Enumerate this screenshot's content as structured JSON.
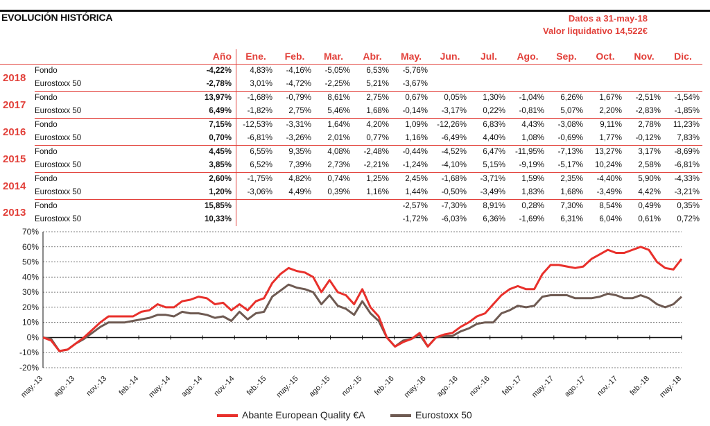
{
  "header": {
    "title": "EVOLUCIÓN HISTÓRICA",
    "date_note": "Datos a 31-may-18",
    "nav_note": "Valor liquidativo 14,522€"
  },
  "table": {
    "ytd_label": "Año",
    "months": [
      "Ene.",
      "Feb.",
      "Mar.",
      "Abr.",
      "May.",
      "Jun.",
      "Jul.",
      "Ago.",
      "Sep.",
      "Oct.",
      "Nov.",
      "Dic."
    ],
    "years": [
      {
        "year": "2018",
        "rows": [
          {
            "name": "Fondo",
            "ytd": "-4,22%",
            "m": [
              "4,83%",
              "-4,16%",
              "-5,05%",
              "6,53%",
              "-5,76%",
              "",
              "",
              "",
              "",
              "",
              "",
              ""
            ]
          },
          {
            "name": "Eurostoxx 50",
            "ytd": "-2,78%",
            "m": [
              "3,01%",
              "-4,72%",
              "-2,25%",
              "5,21%",
              "-3,67%",
              "",
              "",
              "",
              "",
              "",
              "",
              ""
            ]
          }
        ]
      },
      {
        "year": "2017",
        "rows": [
          {
            "name": "Fondo",
            "ytd": "13,97%",
            "m": [
              "-1,68%",
              "-0,79%",
              "8,61%",
              "2,75%",
              "0,67%",
              "0,05%",
              "1,30%",
              "-1,04%",
              "6,26%",
              "1,67%",
              "-2,51%",
              "-1,54%"
            ]
          },
          {
            "name": "Eurostoxx 50",
            "ytd": "6,49%",
            "m": [
              "-1,82%",
              "2,75%",
              "5,46%",
              "1,68%",
              "-0,14%",
              "-3,17%",
              "0,22%",
              "-0,81%",
              "5,07%",
              "2,20%",
              "-2,83%",
              "-1,85%"
            ]
          }
        ]
      },
      {
        "year": "2016",
        "rows": [
          {
            "name": "Fondo",
            "ytd": "7,15%",
            "m": [
              "-12,53%",
              "-3,31%",
              "1,64%",
              "4,20%",
              "1,09%",
              "-12,26%",
              "6,83%",
              "4,43%",
              "-3,08%",
              "9,11%",
              "2,78%",
              "11,23%"
            ]
          },
          {
            "name": "Eurostoxx 50",
            "ytd": "0,70%",
            "m": [
              "-6,81%",
              "-3,26%",
              "2,01%",
              "0,77%",
              "1,16%",
              "-6,49%",
              "4,40%",
              "1,08%",
              "-0,69%",
              "1,77%",
              "-0,12%",
              "7,83%"
            ]
          }
        ]
      },
      {
        "year": "2015",
        "rows": [
          {
            "name": "Fondo",
            "ytd": "4,45%",
            "m": [
              "6,55%",
              "9,35%",
              "4,08%",
              "-2,48%",
              "-0,44%",
              "-4,52%",
              "6,47%",
              "-11,95%",
              "-7,13%",
              "13,27%",
              "3,17%",
              "-8,69%"
            ]
          },
          {
            "name": "Eurostoxx 50",
            "ytd": "3,85%",
            "m": [
              "6,52%",
              "7,39%",
              "2,73%",
              "-2,21%",
              "-1,24%",
              "-4,10%",
              "5,15%",
              "-9,19%",
              "-5,17%",
              "10,24%",
              "2,58%",
              "-6,81%"
            ]
          }
        ]
      },
      {
        "year": "2014",
        "rows": [
          {
            "name": "Fondo",
            "ytd": "2,60%",
            "m": [
              "-1,75%",
              "4,82%",
              "0,74%",
              "1,25%",
              "2,45%",
              "-1,68%",
              "-3,71%",
              "1,59%",
              "2,35%",
              "-4,40%",
              "5,90%",
              "-4,33%"
            ]
          },
          {
            "name": "Eurostoxx 50",
            "ytd": "1,20%",
            "m": [
              "-3,06%",
              "4,49%",
              "0,39%",
              "1,16%",
              "1,44%",
              "-0,50%",
              "-3,49%",
              "1,83%",
              "1,68%",
              "-3,49%",
              "4,42%",
              "-3,21%"
            ]
          }
        ]
      },
      {
        "year": "2013",
        "rows": [
          {
            "name": "Fondo",
            "ytd": "15,85%",
            "m": [
              "",
              "",
              "",
              "",
              "-2,57%",
              "-7,30%",
              "8,91%",
              "0,28%",
              "7,30%",
              "8,54%",
              "0,49%",
              "0,35%"
            ]
          },
          {
            "name": "Eurostoxx 50",
            "ytd": "10,33%",
            "m": [
              "",
              "",
              "",
              "",
              "-1,72%",
              "-6,03%",
              "6,36%",
              "-1,69%",
              "6,31%",
              "6,04%",
              "0,61%",
              "0,72%"
            ]
          }
        ]
      }
    ]
  },
  "chart_data": {
    "type": "line",
    "ylim": [
      -20,
      70
    ],
    "yticks": [
      "70%",
      "60%",
      "50%",
      "40%",
      "30%",
      "20%",
      "10%",
      "0%",
      "-10%",
      "-20%"
    ],
    "yvalues": [
      70,
      60,
      50,
      40,
      30,
      20,
      10,
      0,
      -10,
      -20
    ],
    "xticks": [
      "may.-13",
      "ago.-13",
      "nov.-13",
      "feb.-14",
      "may.-14",
      "ago.-14",
      "nov.-14",
      "feb.-15",
      "may.-15",
      "ago.-15",
      "nov.-15",
      "feb.-16",
      "may.-16",
      "ago.-16",
      "nov.-16",
      "feb.-17",
      "may.-17",
      "ago.-17",
      "nov.-17",
      "feb.-18",
      "may.-18"
    ],
    "grid": true,
    "legend_position": "bottom",
    "series": [
      {
        "name": "Abante European Quality €A",
        "color": "#e8302b",
        "values": [
          0,
          -2,
          -9,
          -8,
          -4,
          0,
          5,
          10,
          14,
          14,
          14,
          14,
          17,
          18,
          22,
          20,
          20,
          24,
          25,
          27,
          26,
          22,
          23,
          18,
          22,
          18,
          24,
          26,
          36,
          42,
          46,
          44,
          43,
          40,
          30,
          38,
          30,
          28,
          22,
          32,
          20,
          14,
          0,
          -6,
          -3,
          -1,
          3,
          -6,
          0,
          2,
          3,
          7,
          10,
          14,
          16,
          22,
          28,
          32,
          34,
          32,
          32,
          42,
          48,
          48,
          47,
          46,
          47,
          52,
          55,
          58,
          56,
          56,
          58,
          60,
          58,
          50,
          46,
          45,
          52
        ]
      },
      {
        "name": "Eurostoxx 50",
        "color": "#6e5a52",
        "values": [
          0,
          -1,
          -9,
          -8,
          -4,
          -1,
          3,
          7,
          10,
          10,
          10,
          11,
          12,
          13,
          15,
          15,
          14,
          17,
          16,
          16,
          15,
          13,
          14,
          11,
          17,
          12,
          16,
          17,
          27,
          31,
          35,
          33,
          32,
          30,
          22,
          28,
          21,
          19,
          15,
          24,
          16,
          11,
          0,
          -6,
          -2,
          -1,
          2,
          -6,
          0,
          1,
          1,
          4,
          6,
          9,
          10,
          10,
          16,
          18,
          21,
          20,
          21,
          27,
          28,
          28,
          28,
          26,
          26,
          26,
          27,
          29,
          28,
          26,
          26,
          28,
          26,
          22,
          20,
          22,
          27
        ]
      }
    ]
  }
}
